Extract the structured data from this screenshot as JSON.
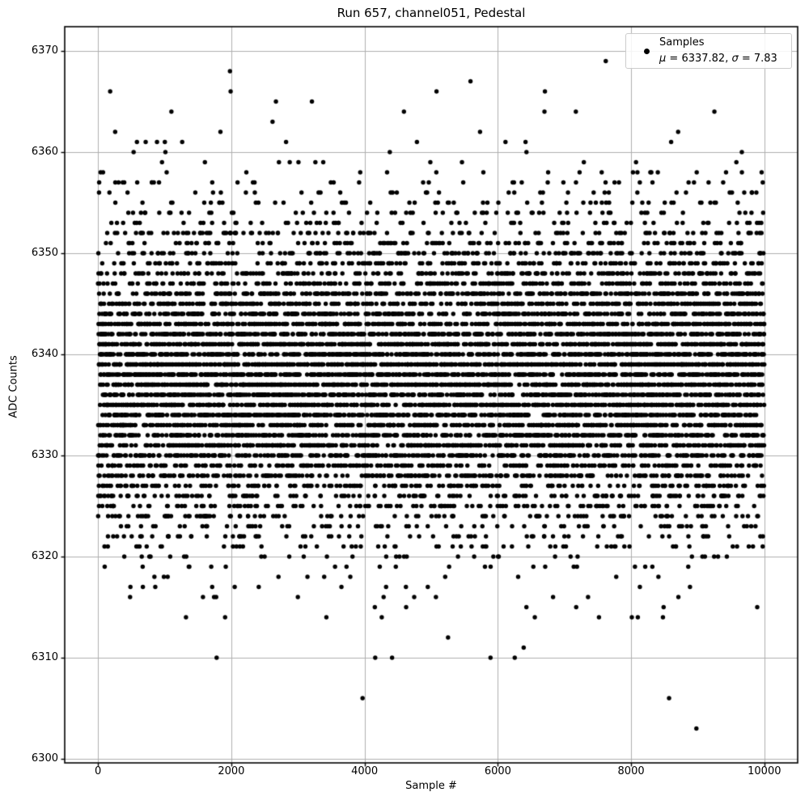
{
  "figure": {
    "title": "Run 657, channel051, Pedestal",
    "xlabel": "Sample #",
    "ylabel": "ADC Counts"
  },
  "legend": {
    "line1": "Samples",
    "mu_symbol": "μ",
    "mu_text": " = 6337.82, ",
    "sigma_symbol": "σ",
    "sigma_text": " = 7.83",
    "full_stats_label": "μ = 6337.82, σ = 7.83",
    "marker": "black-point",
    "position": "upper right"
  },
  "colors": {
    "background": "#ffffff",
    "marker": "#000000",
    "grid": "#b0b0b0",
    "spine": "#000000",
    "legend_edge": "#cccccc",
    "text": "#000000"
  },
  "chart_data": {
    "type": "scatter",
    "title": "Run 657, channel051, Pedestal",
    "xlabel": "Sample #",
    "ylabel": "ADC Counts",
    "legend_entries": [
      {
        "label": "Samples",
        "stats": "μ = 6337.82, σ = 7.83",
        "marker": "point",
        "color": "#000000"
      }
    ],
    "legend_position": "upper right",
    "n_samples": 10000,
    "x_values": "sample index 0..9999",
    "y_distribution": {
      "type": "gaussian",
      "mean": 6337.82,
      "sigma": 7.83,
      "rounded_to_integer": true,
      "observed_min": 6303,
      "observed_max": 6369
    },
    "notable_points": [
      [
        1780,
        6310
      ],
      [
        1980,
        6368
      ],
      [
        1990,
        6366
      ],
      [
        2670,
        6365
      ],
      [
        3210,
        6365
      ],
      [
        3970,
        6306
      ],
      [
        5080,
        6366
      ],
      [
        5890,
        6310
      ],
      [
        6700,
        6364
      ],
      [
        7620,
        6369
      ],
      [
        8570,
        6306
      ],
      [
        8980,
        6303
      ],
      [
        9250,
        6364
      ]
    ],
    "xlim": [
      -500,
      10500
    ],
    "ylim": [
      6299.6,
      6372.4
    ],
    "xticks": [
      0,
      2000,
      4000,
      6000,
      8000,
      10000
    ],
    "yticks": [
      6300,
      6310,
      6320,
      6330,
      6340,
      6350,
      6360,
      6370
    ],
    "xtick_labels": [
      "0",
      "2000",
      "4000",
      "6000",
      "8000",
      "10000"
    ],
    "ytick_labels": [
      "6300",
      "6310",
      "6320",
      "6330",
      "6340",
      "6350",
      "6360",
      "6370"
    ],
    "grid": true,
    "grid_on": true,
    "marker_radius_px": 2.7,
    "render_seed": 20250657
  }
}
